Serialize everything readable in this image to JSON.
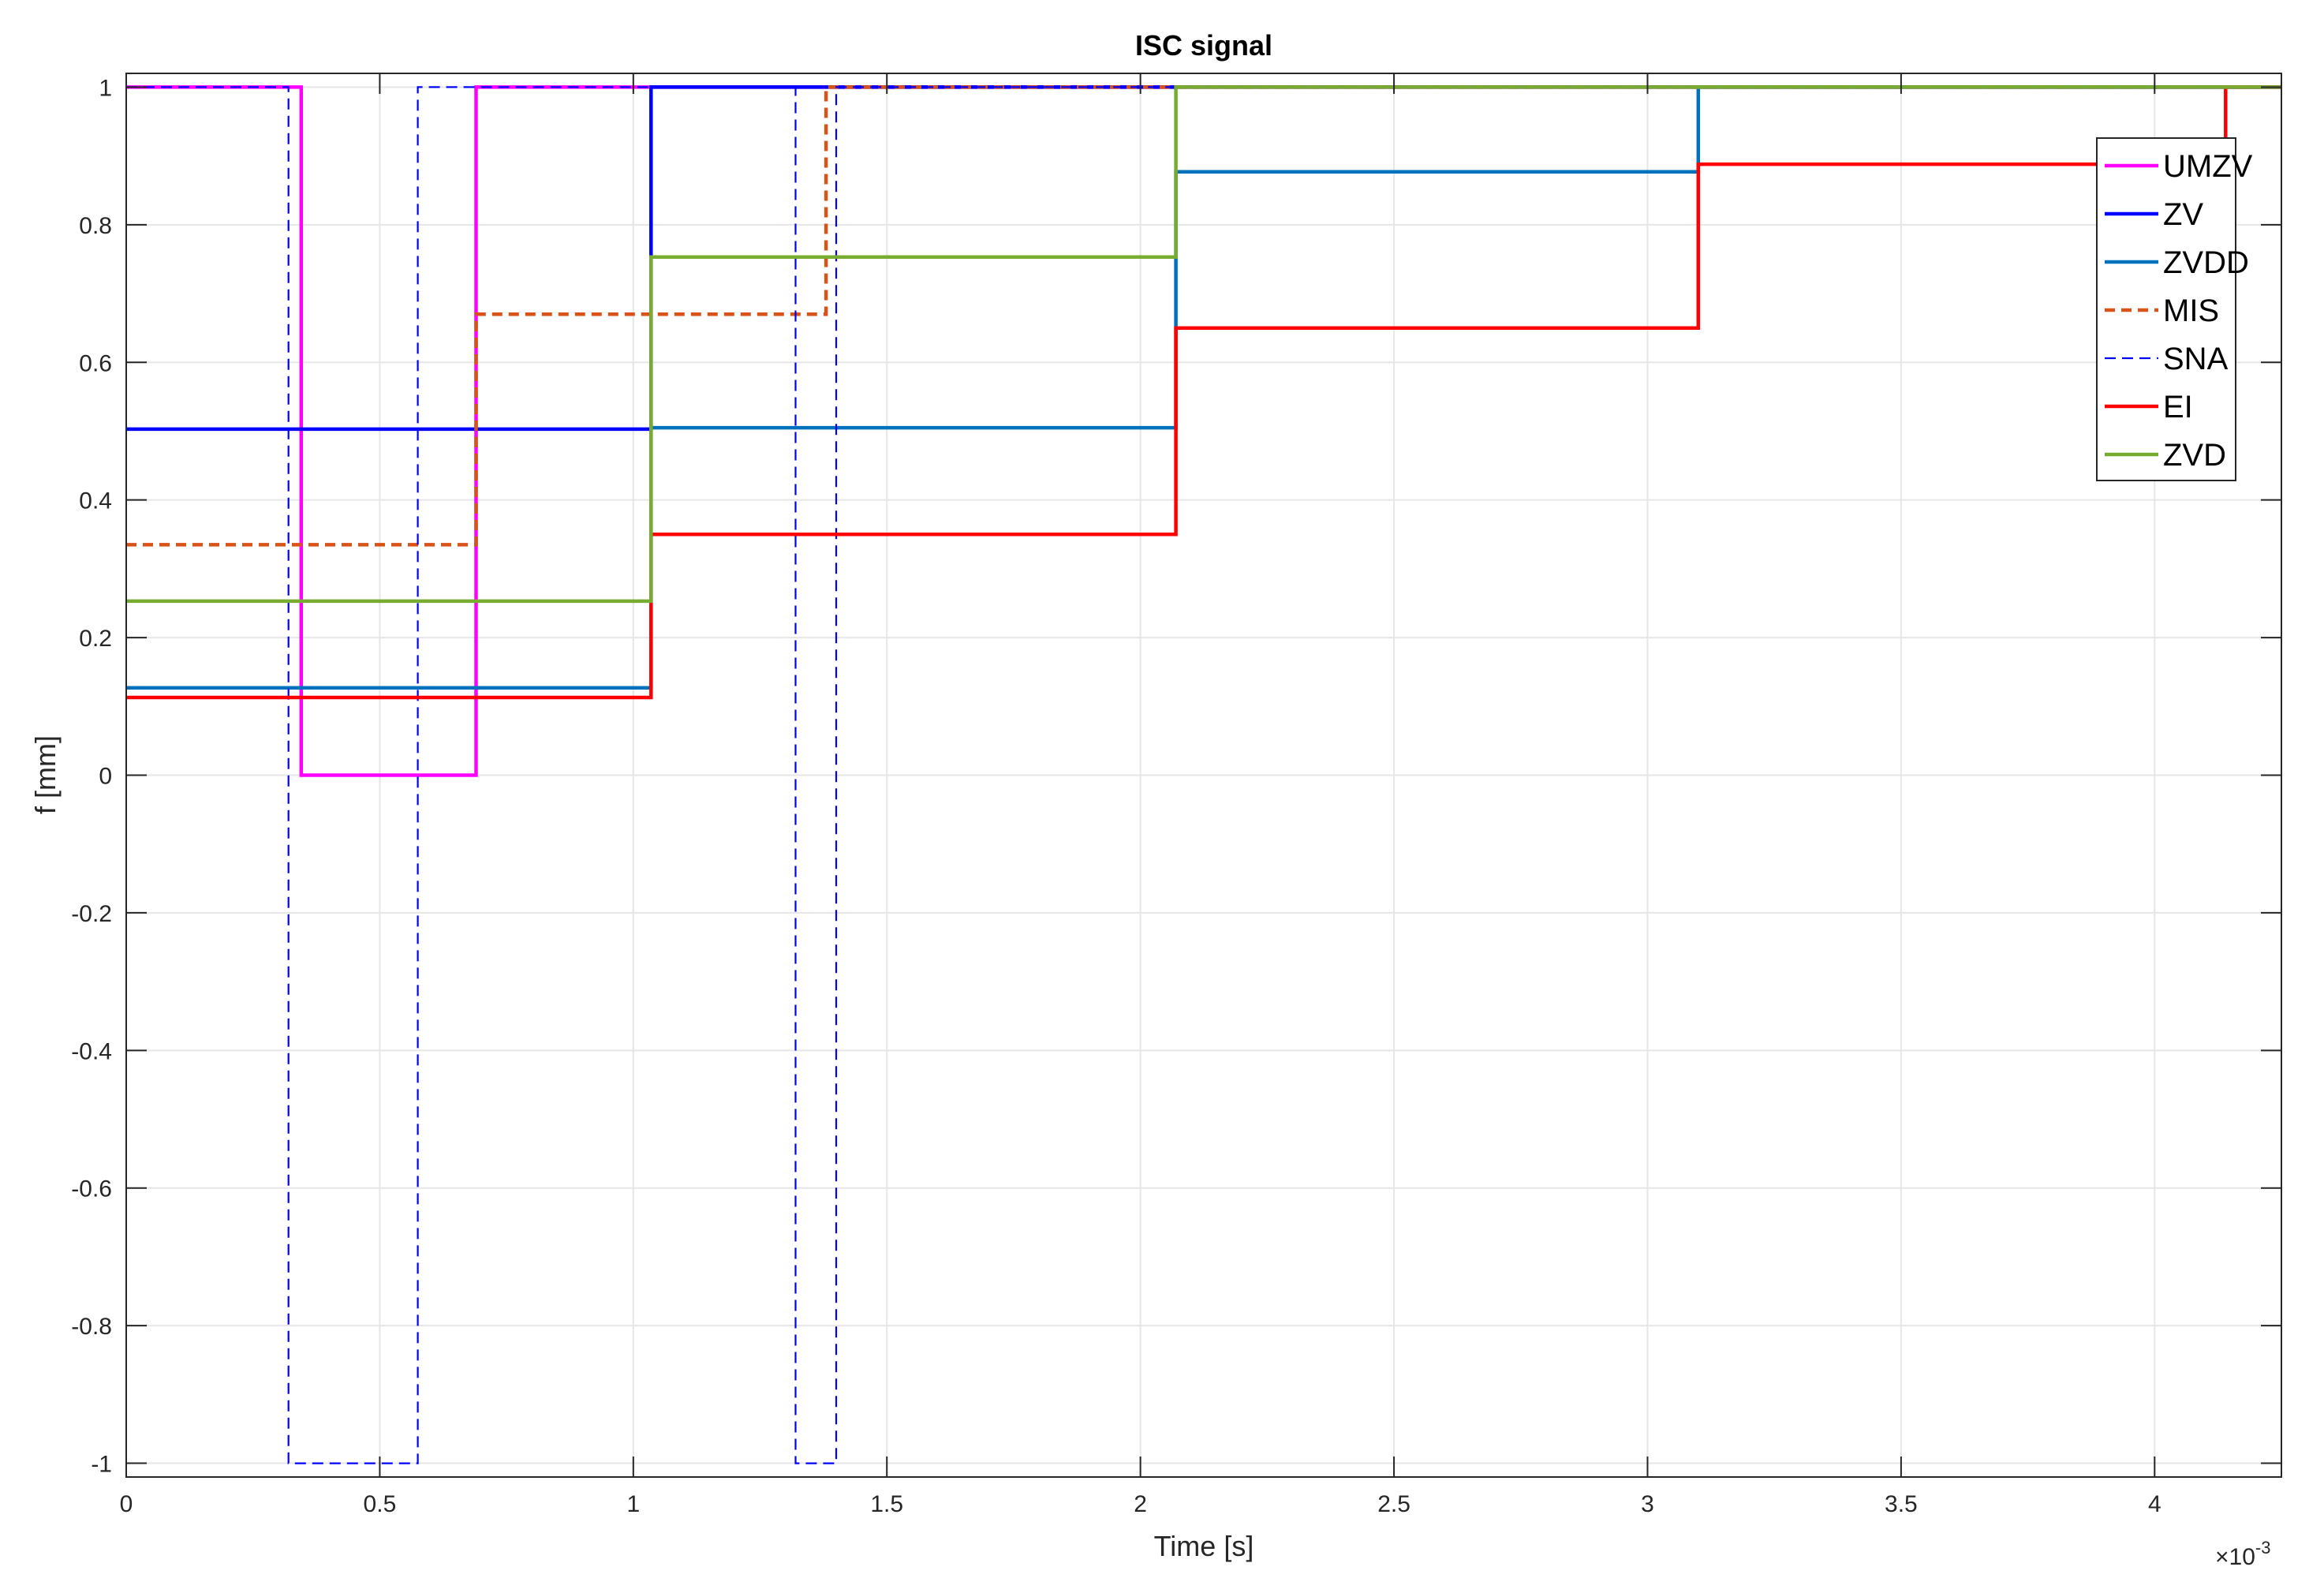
{
  "chart_data": {
    "type": "line",
    "step": true,
    "title": "ISC signal",
    "xlabel": "Time [s]",
    "ylabel": "f [mm]",
    "x_exponent_prefix": "×10",
    "x_exponent_power": "-3",
    "xlim": [
      0,
      0.00425
    ],
    "ylim": [
      -1.02,
      1.02
    ],
    "xticks": [
      0,
      0.0005,
      0.001,
      0.0015,
      0.002,
      0.0025,
      0.003,
      0.0035,
      0.004
    ],
    "xtick_labels": [
      "0",
      "0.5",
      "1",
      "1.5",
      "2",
      "2.5",
      "3",
      "3.5",
      "4"
    ],
    "yticks": [
      -1,
      -0.8,
      -0.6,
      -0.4,
      -0.2,
      0,
      0.2,
      0.4,
      0.6,
      0.8,
      1
    ],
    "ytick_labels": [
      "-1",
      "-0.8",
      "-0.6",
      "-0.4",
      "-0.2",
      "0",
      "0.2",
      "0.4",
      "0.6",
      "0.8",
      "1"
    ],
    "grid": true,
    "legend_position": "top-right",
    "series": [
      {
        "name": "UMZV",
        "color": "#ff00ff",
        "dash": "solid",
        "x": [
          0,
          0.000345,
          0.000345,
          0.00069,
          0.00069,
          0.00425
        ],
        "y": [
          1,
          1,
          0,
          0,
          1,
          1
        ]
      },
      {
        "name": "ZV",
        "color": "#0000ff",
        "dash": "solid",
        "x": [
          0,
          0.001035,
          0.001035,
          0.00425
        ],
        "y": [
          0.503,
          0.503,
          1,
          1
        ]
      },
      {
        "name": "ZVDD",
        "color": "#0072bd",
        "dash": "solid",
        "x": [
          0,
          0.001035,
          0.001035,
          0.00207,
          0.00207,
          0.0031,
          0.0031,
          0.00425
        ],
        "y": [
          0.127,
          0.127,
          0.505,
          0.505,
          0.877,
          0.877,
          1,
          1
        ]
      },
      {
        "name": "MIS",
        "color": "#d95319",
        "dash": "dashed",
        "x": [
          0,
          0.00069,
          0.00069,
          0.00138,
          0.00138,
          0.00425
        ],
        "y": [
          0.335,
          0.335,
          0.67,
          0.67,
          1,
          1
        ]
      },
      {
        "name": "SNA",
        "color": "#0000ff",
        "dash": "dashed-thin",
        "x": [
          0,
          0.00032,
          0.00032,
          0.000575,
          0.000575,
          0.00132,
          0.00132,
          0.0014,
          0.0014,
          0.00425
        ],
        "y": [
          1,
          1,
          -1,
          -1,
          1,
          1,
          -1,
          -1,
          1,
          1
        ]
      },
      {
        "name": "EI",
        "color": "#ff0000",
        "dash": "solid",
        "x": [
          0,
          0.001035,
          0.001035,
          0.00207,
          0.00207,
          0.0031,
          0.0031,
          0.00414,
          0.00414,
          0.00425
        ],
        "y": [
          0.113,
          0.113,
          0.35,
          0.35,
          0.65,
          0.65,
          0.888,
          0.888,
          1,
          1
        ]
      },
      {
        "name": "ZVD",
        "color": "#77ac30",
        "dash": "solid",
        "x": [
          0,
          0.001035,
          0.001035,
          0.00207,
          0.00207,
          0.00425
        ],
        "y": [
          0.253,
          0.253,
          0.753,
          0.753,
          1,
          1
        ]
      }
    ]
  }
}
